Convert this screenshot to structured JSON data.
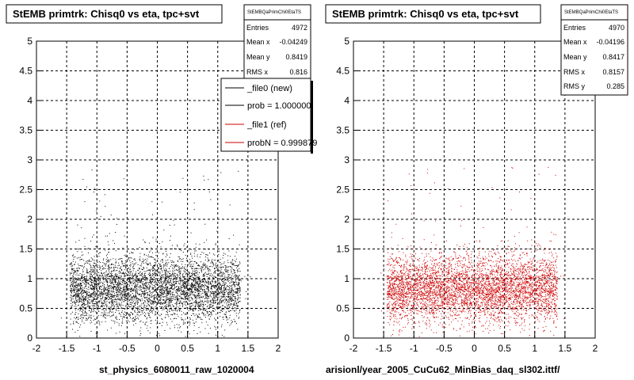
{
  "chart_data": [
    {
      "type": "scatter",
      "title": "StEMB primtrk: Chisq0 vs eta, tpc+svt",
      "xlabel": "st_physics_6080011_raw_1020004",
      "ylabel": "",
      "xlim": [
        -2,
        2
      ],
      "ylim": [
        0,
        5
      ],
      "x_ticks": [
        "-2",
        "-1.5",
        "-1",
        "-0.5",
        "0",
        "0.5",
        "1",
        "1.5",
        "2"
      ],
      "y_ticks": [
        "0",
        "0.5",
        "1",
        "1.5",
        "2",
        "2.5",
        "3",
        "3.5",
        "4",
        "4.5",
        "5"
      ],
      "grid": true,
      "marker_color": "#000000",
      "stats": {
        "header": "StEMBQaPrimChi0EtaTS",
        "rows": [
          {
            "label": "Entries",
            "value": "4972"
          },
          {
            "label": "Mean x",
            "value": "-0.04249"
          },
          {
            "label": "Mean y",
            "value": "0.8419"
          },
          {
            "label": "RMS x",
            "value": "0.816"
          }
        ]
      },
      "legend": {
        "placement": "top-right",
        "entries": [
          {
            "label": "_file0 (new)",
            "color": "#000000"
          },
          {
            "label": "prob = 1.000000",
            "color": "#000000"
          },
          {
            "label": "_file1 (ref)",
            "color": "#cc0000"
          },
          {
            "label": "probN = 0.999879",
            "color": "#cc0000"
          }
        ]
      },
      "distribution": {
        "entries": 4972,
        "mean_x": -0.04249,
        "mean_y": 0.8419,
        "rms_x": 0.816
      }
    },
    {
      "type": "scatter",
      "title": "StEMB primtrk: Chisq0 vs eta, tpc+svt",
      "xlabel": "arisionl/year_2005_CuCu62_MinBias_daq_sl302.ittf/",
      "ylabel": "",
      "xlim": [
        -2,
        2
      ],
      "ylim": [
        0,
        5
      ],
      "x_ticks": [
        "-2",
        "-1.5",
        "-1",
        "-0.5",
        "0",
        "0.5",
        "1",
        "1.5",
        "2"
      ],
      "y_ticks": [
        "0",
        "0.5",
        "1",
        "1.5",
        "2",
        "2.5",
        "3",
        "3.5",
        "4",
        "4.5",
        "5"
      ],
      "grid": true,
      "marker_color": "#cc0000",
      "stats": {
        "header": "StEMBQaPrimChi0EtaTS",
        "rows": [
          {
            "label": "Entries",
            "value": "4970"
          },
          {
            "label": "Mean x",
            "value": "-0.04196"
          },
          {
            "label": "Mean y",
            "value": "0.8417"
          },
          {
            "label": "RMS x",
            "value": "0.8157"
          },
          {
            "label": "RMS y",
            "value": "0.285"
          }
        ]
      },
      "distribution": {
        "entries": 4970,
        "mean_x": -0.04196,
        "mean_y": 0.8417,
        "rms_x": 0.8157,
        "rms_y": 0.285
      }
    }
  ]
}
